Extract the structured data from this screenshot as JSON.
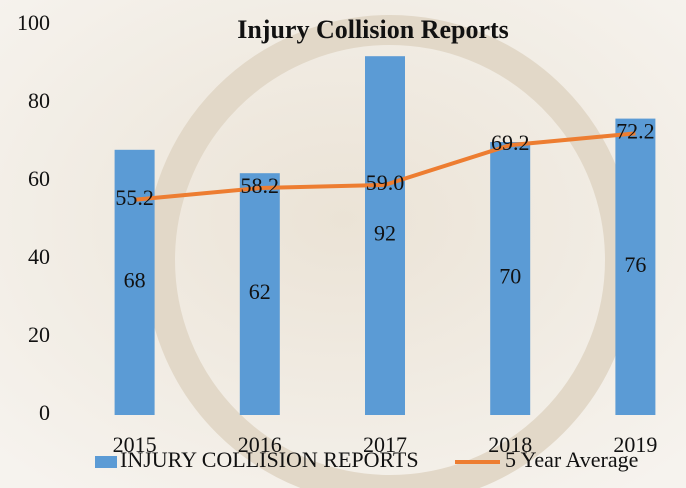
{
  "chart_data": {
    "type": "bar",
    "title": "Injury Collision Reports",
    "categories": [
      "2015",
      "2016",
      "2017",
      "2018",
      "2019"
    ],
    "series": [
      {
        "name": "INJURY COLLISION REPORTS",
        "type": "bar",
        "color": "#5b9bd5",
        "values": [
          68,
          62,
          92,
          70,
          76
        ]
      },
      {
        "name": "5 Year Average",
        "type": "line",
        "color": "#ed7d31",
        "values": [
          55.2,
          58.2,
          59.0,
          69.2,
          72.2
        ],
        "value_labels": [
          "55.2",
          "58.2",
          "59.0",
          "69.2",
          "72.2"
        ]
      }
    ],
    "ylim": [
      0,
      100
    ],
    "yticks": [
      0,
      20,
      40,
      60,
      80,
      100
    ],
    "legend": "bottom"
  }
}
